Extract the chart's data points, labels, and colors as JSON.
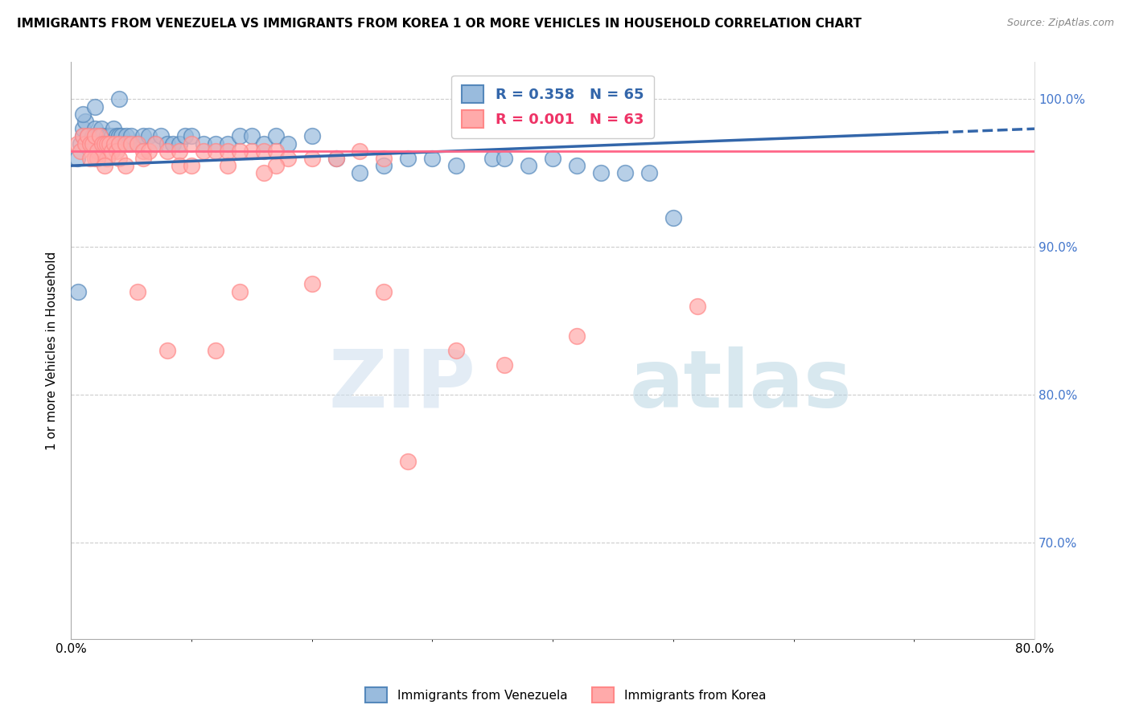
{
  "title": "IMMIGRANTS FROM VENEZUELA VS IMMIGRANTS FROM KOREA 1 OR MORE VEHICLES IN HOUSEHOLD CORRELATION CHART",
  "source": "Source: ZipAtlas.com",
  "ylabel": "1 or more Vehicles in Household",
  "xlim": [
    0.0,
    0.8
  ],
  "ylim": [
    0.635,
    1.025
  ],
  "legend_blue": "Immigrants from Venezuela",
  "legend_pink": "Immigrants from Korea",
  "R_blue": 0.358,
  "N_blue": 65,
  "R_pink": 0.001,
  "N_pink": 63,
  "color_blue_fill": "#99BBDD",
  "color_blue_edge": "#5588BB",
  "color_pink_fill": "#FFAAAA",
  "color_pink_edge": "#FF8888",
  "color_blue_line": "#3366AA",
  "color_pink_line": "#FF6688",
  "watermark_zip": "ZIP",
  "watermark_atlas": "atlas",
  "blue_x": [
    0.005,
    0.008,
    0.01,
    0.01,
    0.012,
    0.014,
    0.016,
    0.018,
    0.02,
    0.02,
    0.022,
    0.024,
    0.025,
    0.026,
    0.028,
    0.03,
    0.03,
    0.032,
    0.034,
    0.035,
    0.038,
    0.04,
    0.042,
    0.044,
    0.046,
    0.048,
    0.05,
    0.055,
    0.06,
    0.065,
    0.07,
    0.075,
    0.08,
    0.085,
    0.09,
    0.095,
    0.1,
    0.11,
    0.12,
    0.13,
    0.14,
    0.15,
    0.16,
    0.17,
    0.18,
    0.2,
    0.22,
    0.24,
    0.26,
    0.28,
    0.3,
    0.32,
    0.35,
    0.36,
    0.38,
    0.4,
    0.42,
    0.44,
    0.46,
    0.48,
    0.5,
    0.01,
    0.02,
    0.006,
    0.04
  ],
  "blue_y": [
    0.96,
    0.97,
    0.975,
    0.98,
    0.985,
    0.975,
    0.97,
    0.975,
    0.975,
    0.98,
    0.975,
    0.97,
    0.98,
    0.975,
    0.97,
    0.97,
    0.975,
    0.975,
    0.975,
    0.98,
    0.975,
    0.975,
    0.975,
    0.97,
    0.975,
    0.97,
    0.975,
    0.97,
    0.975,
    0.975,
    0.97,
    0.975,
    0.97,
    0.97,
    0.97,
    0.975,
    0.975,
    0.97,
    0.97,
    0.97,
    0.975,
    0.975,
    0.97,
    0.975,
    0.97,
    0.975,
    0.96,
    0.95,
    0.955,
    0.96,
    0.96,
    0.955,
    0.96,
    0.96,
    0.955,
    0.96,
    0.955,
    0.95,
    0.95,
    0.95,
    0.92,
    0.99,
    0.995,
    0.87,
    1.0
  ],
  "pink_x": [
    0.005,
    0.008,
    0.01,
    0.012,
    0.014,
    0.016,
    0.018,
    0.02,
    0.022,
    0.024,
    0.026,
    0.028,
    0.03,
    0.032,
    0.034,
    0.036,
    0.038,
    0.04,
    0.045,
    0.05,
    0.055,
    0.06,
    0.065,
    0.07,
    0.08,
    0.09,
    0.1,
    0.11,
    0.12,
    0.13,
    0.14,
    0.15,
    0.16,
    0.17,
    0.18,
    0.2,
    0.22,
    0.24,
    0.26,
    0.14,
    0.02,
    0.03,
    0.04,
    0.06,
    0.09,
    0.13,
    0.17,
    0.022,
    0.045,
    0.1,
    0.16,
    0.26,
    0.32,
    0.016,
    0.028,
    0.055,
    0.08,
    0.12,
    0.2,
    0.28,
    0.36,
    0.42,
    0.52
  ],
  "pink_y": [
    0.97,
    0.965,
    0.975,
    0.97,
    0.975,
    0.97,
    0.97,
    0.975,
    0.965,
    0.975,
    0.97,
    0.97,
    0.97,
    0.97,
    0.965,
    0.97,
    0.965,
    0.97,
    0.97,
    0.97,
    0.97,
    0.965,
    0.965,
    0.97,
    0.965,
    0.965,
    0.97,
    0.965,
    0.965,
    0.965,
    0.87,
    0.965,
    0.965,
    0.965,
    0.96,
    0.96,
    0.96,
    0.965,
    0.96,
    0.965,
    0.96,
    0.96,
    0.96,
    0.96,
    0.955,
    0.955,
    0.955,
    0.96,
    0.955,
    0.955,
    0.95,
    0.87,
    0.83,
    0.96,
    0.955,
    0.87,
    0.83,
    0.83,
    0.875,
    0.755,
    0.82,
    0.84,
    0.86
  ]
}
